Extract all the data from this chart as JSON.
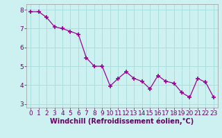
{
  "x": [
    0,
    1,
    2,
    3,
    4,
    5,
    6,
    7,
    8,
    9,
    10,
    11,
    12,
    13,
    14,
    15,
    16,
    17,
    18,
    19,
    20,
    21,
    22,
    23
  ],
  "y": [
    7.9,
    7.9,
    7.6,
    7.1,
    7.0,
    6.85,
    6.7,
    5.45,
    5.0,
    5.0,
    3.95,
    4.35,
    4.7,
    4.35,
    4.2,
    3.8,
    4.5,
    4.2,
    4.1,
    3.6,
    3.35,
    4.35,
    4.15,
    3.35
  ],
  "line_color": "#990099",
  "marker": "+",
  "marker_size": 4,
  "marker_lw": 1.2,
  "bg_color": "#cdf0f0",
  "grid_color": "#aadddd",
  "xlabel": "Windchill (Refroidissement éolien,°C)",
  "xlabel_color": "#660066",
  "tick_color": "#660066",
  "ylim": [
    2.8,
    8.3
  ],
  "yticks": [
    3,
    4,
    5,
    6,
    7,
    8
  ],
  "xlim": [
    -0.5,
    23.5
  ],
  "xticks": [
    0,
    1,
    2,
    3,
    4,
    5,
    6,
    7,
    8,
    9,
    10,
    11,
    12,
    13,
    14,
    15,
    16,
    17,
    18,
    19,
    20,
    21,
    22,
    23
  ],
  "xlabel_fontsize": 7,
  "tick_fontsize": 6.5
}
